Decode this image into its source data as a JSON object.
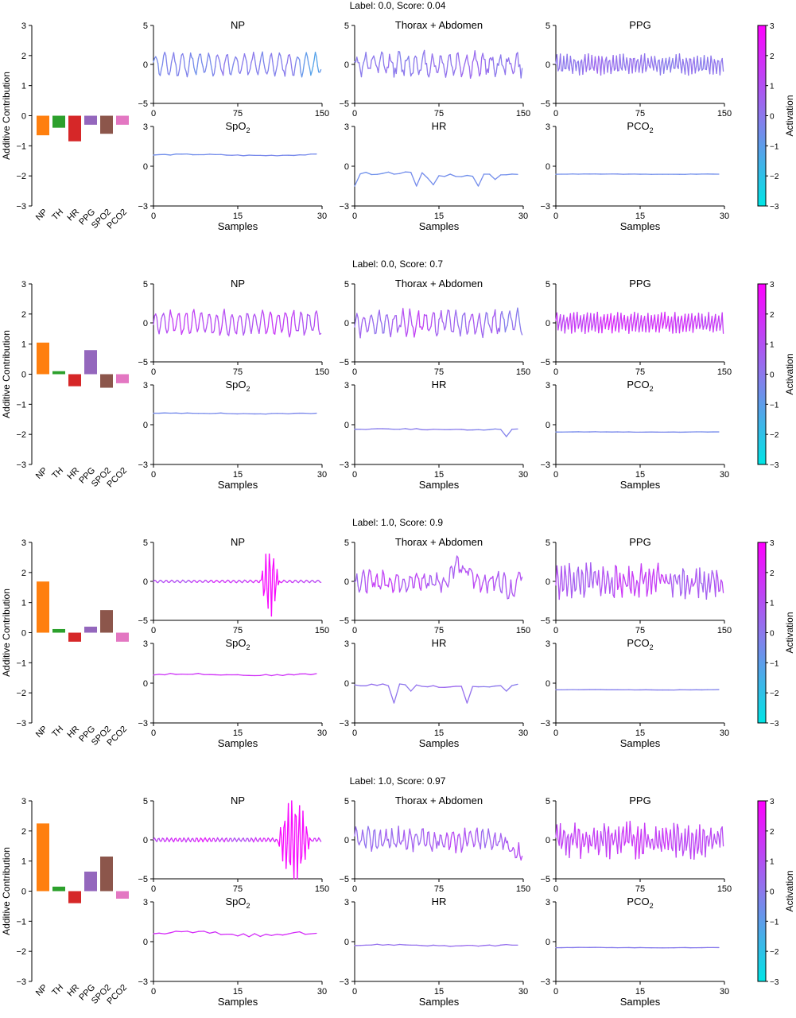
{
  "colorbar": {
    "label": "Activation",
    "ticks": [
      "3",
      "2",
      "1",
      "0",
      "−1",
      "−2",
      "−3"
    ],
    "min": -3,
    "max": 3,
    "colors": [
      "#00e5e5",
      "#8c78ec",
      "#ff00ff"
    ]
  },
  "chart_data": [
    {
      "type": "bar",
      "title": "Label: 0.0, Score: 0.04",
      "ylabel": "Additive Contribution",
      "ylim": [
        -3,
        3
      ],
      "yticks": [
        "3",
        "2",
        "1",
        "0",
        "−1",
        "−2",
        "−3"
      ],
      "categories": [
        "NP",
        "TH",
        "HR",
        "PPG",
        "SPO2",
        "PCO2"
      ],
      "values": [
        -0.65,
        -0.4,
        -0.85,
        -0.3,
        -0.6,
        -0.3
      ],
      "colors": [
        "#ff7f0e",
        "#2ca02c",
        "#d62728",
        "#9467bd",
        "#8c564b",
        "#e377c2"
      ],
      "signals": [
        {
          "type": "line",
          "title": "NP",
          "ylim": [
            -5,
            5
          ],
          "yticks": [
            "5",
            "0",
            "−5"
          ],
          "xlim": [
            0,
            150
          ],
          "xticks": [
            "0",
            "75",
            "150"
          ],
          "samples": 150,
          "amp": 1.3,
          "freq": 19,
          "jitter": 0.3,
          "seed": 11,
          "act_mean": -0.5,
          "act_var": 0.5,
          "seed_act": 3
        },
        {
          "type": "line",
          "title": "Thorax + Abdomen",
          "ylim": [
            -5,
            5
          ],
          "yticks": [
            "5",
            "0",
            "−5"
          ],
          "xlim": [
            0,
            150
          ],
          "xticks": [
            "0",
            "75",
            "150"
          ],
          "samples": 150,
          "amp": 1.2,
          "freq": 20,
          "jitter": 0.6,
          "seed": 12,
          "act_mean": 0.0,
          "act_var": 0.5,
          "seed_act": 4
        },
        {
          "type": "line",
          "title": "PPG",
          "ylim": [
            -5,
            5
          ],
          "yticks": [
            "5",
            "0",
            "−5"
          ],
          "xlim": [
            0,
            150
          ],
          "xticks": [
            "0",
            "75",
            "150"
          ],
          "samples": 150,
          "amp": 1.1,
          "freq": 48,
          "jitter": 0.3,
          "seed": 13,
          "act_mean": 0.0,
          "act_var": 0.3,
          "seed_act": 5
        },
        {
          "type": "line",
          "title": "SpO",
          "sub": "2",
          "ylim": [
            -3,
            3
          ],
          "yticks": [
            "3",
            "0",
            "−3"
          ],
          "xlim": [
            0,
            30
          ],
          "xticks": [
            "0",
            "15",
            "30"
          ],
          "xlabel": "Samples",
          "samples": 30,
          "base": 0.85,
          "noise": 0.04,
          "seed": 14,
          "act_mean": -0.6,
          "act_var": 0.2,
          "seed_act": 6
        },
        {
          "type": "line",
          "title": "HR",
          "ylim": [
            -3,
            3
          ],
          "yticks": [
            "3",
            "0",
            "−3"
          ],
          "xlim": [
            0,
            30
          ],
          "xticks": [
            "0",
            "15",
            "30"
          ],
          "xlabel": "Samples",
          "samples": 30,
          "base": -0.6,
          "noise": 0.1,
          "dips": [
            [
              0,
              -1.5
            ],
            [
              11,
              -1.5
            ],
            [
              13,
              -0.9
            ],
            [
              14,
              -1.4
            ],
            [
              22,
              -1.5
            ],
            [
              25,
              -1.0
            ]
          ],
          "seed": 15,
          "act_mean": -0.6,
          "act_var": 0.3,
          "seed_act": 7
        },
        {
          "type": "line",
          "title": "PCO",
          "sub": "2",
          "ylim": [
            -3,
            3
          ],
          "yticks": [
            "3",
            "0",
            "−3"
          ],
          "xlim": [
            0,
            30
          ],
          "xticks": [
            "0",
            "15",
            "30"
          ],
          "xlabel": "Samples",
          "samples": 30,
          "base": -0.6,
          "noise": 0.01,
          "seed": 16,
          "act_mean": -0.6,
          "act_var": 0.1,
          "seed_act": 8
        }
      ]
    },
    {
      "type": "bar",
      "title": "Label: 0.0, Score: 0.7",
      "ylabel": "Additive Contribution",
      "ylim": [
        -3,
        3
      ],
      "yticks": [
        "3",
        "2",
        "1",
        "0",
        "−1",
        "−2",
        "−3"
      ],
      "categories": [
        "NP",
        "TH",
        "HR",
        "PPG",
        "SPO2",
        "PCO2"
      ],
      "values": [
        1.05,
        0.1,
        -0.4,
        0.8,
        -0.45,
        -0.3
      ],
      "colors": [
        "#ff7f0e",
        "#2ca02c",
        "#d62728",
        "#9467bd",
        "#8c564b",
        "#e377c2"
      ],
      "signals": [
        {
          "type": "line",
          "title": "NP",
          "ylim": [
            -5,
            5
          ],
          "yticks": [
            "5",
            "0",
            "−5"
          ],
          "xlim": [
            0,
            150
          ],
          "xticks": [
            "0",
            "75",
            "150"
          ],
          "samples": 150,
          "amp": 1.4,
          "freq": 22,
          "jitter": 0.3,
          "seed": 21,
          "act_mean": 1.0,
          "act_var": 0.6,
          "seed_act": 9
        },
        {
          "type": "line",
          "title": "Thorax + Abdomen",
          "ylim": [
            -5,
            5
          ],
          "yticks": [
            "5",
            "0",
            "−5"
          ],
          "xlim": [
            0,
            150
          ],
          "xticks": [
            "0",
            "75",
            "150"
          ],
          "samples": 150,
          "amp": 1.3,
          "freq": 22,
          "jitter": 0.5,
          "seed": 22,
          "act_mean": 0.4,
          "act_var": 0.9,
          "seed_act": 10
        },
        {
          "type": "line",
          "title": "PPG",
          "ylim": [
            -5,
            5
          ],
          "yticks": [
            "5",
            "0",
            "−5"
          ],
          "xlim": [
            0,
            150
          ],
          "xticks": [
            "0",
            "75",
            "150"
          ],
          "samples": 150,
          "amp": 1.2,
          "freq": 50,
          "jitter": 0.3,
          "seed": 23,
          "act_mean": 1.4,
          "act_var": 0.6,
          "seed_act": 11
        },
        {
          "type": "line",
          "title": "SpO",
          "sub": "2",
          "ylim": [
            -3,
            3
          ],
          "yticks": [
            "3",
            "0",
            "−3"
          ],
          "xlim": [
            0,
            30
          ],
          "xticks": [
            "0",
            "15",
            "30"
          ],
          "xlabel": "Samples",
          "samples": 30,
          "base": 0.85,
          "noise": 0.03,
          "seed": 24,
          "act_mean": -0.5,
          "act_var": 0.1,
          "seed_act": 12
        },
        {
          "type": "line",
          "title": "HR",
          "ylim": [
            -3,
            3
          ],
          "yticks": [
            "3",
            "0",
            "−3"
          ],
          "xlim": [
            0,
            30
          ],
          "xticks": [
            "0",
            "15",
            "30"
          ],
          "xlabel": "Samples",
          "samples": 30,
          "base": -0.35,
          "noise": 0.04,
          "dips": [
            [
              27,
              -0.9
            ]
          ],
          "seed": 25,
          "act_mean": -0.2,
          "act_var": 0.3,
          "seed_act": 13
        },
        {
          "type": "line",
          "title": "PCO",
          "sub": "2",
          "ylim": [
            -3,
            3
          ],
          "yticks": [
            "3",
            "0",
            "−3"
          ],
          "xlim": [
            0,
            30
          ],
          "xticks": [
            "0",
            "15",
            "30"
          ],
          "xlabel": "Samples",
          "samples": 30,
          "base": -0.55,
          "noise": 0.01,
          "seed": 26,
          "act_mean": -0.5,
          "act_var": 0.1,
          "seed_act": 14
        }
      ]
    },
    {
      "type": "bar",
      "title": "Label: 1.0, Score: 0.9",
      "ylabel": "Additive Contribution",
      "ylim": [
        -3,
        3
      ],
      "yticks": [
        "3",
        "2",
        "1",
        "0",
        "−1",
        "−2",
        "−3"
      ],
      "categories": [
        "NP",
        "TH",
        "HR",
        "PPG",
        "SPO2",
        "PCO2"
      ],
      "values": [
        1.7,
        0.12,
        -0.3,
        0.2,
        0.75,
        -0.3
      ],
      "colors": [
        "#ff7f0e",
        "#2ca02c",
        "#d62728",
        "#9467bd",
        "#8c564b",
        "#e377c2"
      ],
      "signals": [
        {
          "type": "line",
          "title": "NP",
          "ylim": [
            -5,
            5
          ],
          "yticks": [
            "5",
            "0",
            "−5"
          ],
          "xlim": [
            0,
            150
          ],
          "xticks": [
            "0",
            "75",
            "150"
          ],
          "samples": 150,
          "amp": 0.15,
          "freq": 30,
          "jitter": 0.15,
          "burst": [
            95,
            112,
            4.5
          ],
          "seed": 31,
          "act_mean": 1.2,
          "act_var": 0.8,
          "seed_act": 15
        },
        {
          "type": "line",
          "title": "Thorax + Abdomen",
          "ylim": [
            -5,
            5
          ],
          "yticks": [
            "5",
            "0",
            "−5"
          ],
          "xlim": [
            0,
            150
          ],
          "xticks": [
            "0",
            "75",
            "150"
          ],
          "samples": 150,
          "amp": 0.9,
          "freq": 25,
          "jitter": 0.8,
          "trend": [
            [
              90,
              2.5
            ],
            [
              100,
              1.5
            ],
            [
              140,
              -1.5
            ],
            [
              148,
              1.5
            ]
          ],
          "seed": 32,
          "act_mean": 0.8,
          "act_var": 0.9,
          "seed_act": 16
        },
        {
          "type": "line",
          "title": "PPG",
          "ylim": [
            -5,
            5
          ],
          "yticks": [
            "5",
            "0",
            "−5"
          ],
          "xlim": [
            0,
            150
          ],
          "xticks": [
            "0",
            "75",
            "150"
          ],
          "samples": 150,
          "amp": 1.3,
          "freq": 40,
          "jitter": 0.9,
          "seed": 33,
          "act_mean": 0.9,
          "act_var": 0.8,
          "seed_act": 17
        },
        {
          "type": "line",
          "title": "SpO",
          "sub": "2",
          "ylim": [
            -3,
            3
          ],
          "yticks": [
            "3",
            "0",
            "−3"
          ],
          "xlim": [
            0,
            30
          ],
          "xticks": [
            "0",
            "15",
            "30"
          ],
          "xlabel": "Samples",
          "samples": 30,
          "base": 0.65,
          "noise": 0.05,
          "seed": 34,
          "act_mean": 1.6,
          "act_var": 0.2,
          "seed_act": 18
        },
        {
          "type": "line",
          "title": "HR",
          "ylim": [
            -3,
            3
          ],
          "yticks": [
            "3",
            "0",
            "−3"
          ],
          "xlim": [
            0,
            30
          ],
          "xticks": [
            "0",
            "15",
            "30"
          ],
          "xlabel": "Samples",
          "samples": 30,
          "base": -0.2,
          "noise": 0.08,
          "dips": [
            [
              7,
              -1.5
            ],
            [
              10,
              -0.6
            ],
            [
              20,
              -1.5
            ],
            [
              27,
              -0.6
            ]
          ],
          "seed": 35,
          "act_mean": 0.0,
          "act_var": 0.4,
          "seed_act": 19
        },
        {
          "type": "line",
          "title": "PCO",
          "sub": "2",
          "ylim": [
            -3,
            3
          ],
          "yticks": [
            "3",
            "0",
            "−3"
          ],
          "xlim": [
            0,
            30
          ],
          "xticks": [
            "0",
            "15",
            "30"
          ],
          "xlabel": "Samples",
          "samples": 30,
          "base": -0.5,
          "noise": 0.01,
          "seed": 36,
          "act_mean": -0.2,
          "act_var": 0.1,
          "seed_act": 20
        }
      ]
    },
    {
      "type": "bar",
      "title": "Label: 1.0, Score: 0.97",
      "ylabel": "Additive Contribution",
      "ylim": [
        -3,
        3
      ],
      "yticks": [
        "3",
        "2",
        "1",
        "0",
        "−1",
        "−2",
        "−3"
      ],
      "categories": [
        "NP",
        "TH",
        "HR",
        "PPG",
        "SPO2",
        "PCO2"
      ],
      "values": [
        2.25,
        0.15,
        -0.4,
        0.65,
        1.15,
        -0.25
      ],
      "colors": [
        "#ff7f0e",
        "#2ca02c",
        "#d62728",
        "#9467bd",
        "#8c564b",
        "#e377c2"
      ],
      "signals": [
        {
          "type": "line",
          "title": "NP",
          "ylim": [
            -5,
            5
          ],
          "yticks": [
            "5",
            "0",
            "−5"
          ],
          "xlim": [
            0,
            150
          ],
          "xticks": [
            "0",
            "75",
            "150"
          ],
          "samples": 150,
          "amp": 0.25,
          "freq": 40,
          "jitter": 0.15,
          "burst": [
            110,
            140,
            5.5
          ],
          "seed": 41,
          "act_mean": 1.4,
          "act_var": 0.8,
          "seed_act": 21
        },
        {
          "type": "line",
          "title": "Thorax + Abdomen",
          "ylim": [
            -5,
            5
          ],
          "yticks": [
            "5",
            "0",
            "−5"
          ],
          "xlim": [
            0,
            150
          ],
          "xticks": [
            "0",
            "75",
            "150"
          ],
          "samples": 150,
          "amp": 1.0,
          "freq": 28,
          "jitter": 0.8,
          "trend": [
            [
              140,
              -1.5
            ],
            [
              148,
              -2.0
            ]
          ],
          "seed": 42,
          "act_mean": 0.5,
          "act_var": 0.6,
          "seed_act": 22
        },
        {
          "type": "line",
          "title": "PPG",
          "ylim": [
            -5,
            5
          ],
          "yticks": [
            "5",
            "0",
            "−5"
          ],
          "xlim": [
            0,
            150
          ],
          "xticks": [
            "0",
            "75",
            "150"
          ],
          "samples": 150,
          "amp": 1.5,
          "freq": 46,
          "jitter": 0.7,
          "seed": 43,
          "act_mean": 1.1,
          "act_var": 0.6,
          "seed_act": 23
        },
        {
          "type": "line",
          "title": "SpO",
          "sub": "2",
          "ylim": [
            -3,
            3
          ],
          "yticks": [
            "3",
            "0",
            "−3"
          ],
          "xlim": [
            0,
            30
          ],
          "xticks": [
            "0",
            "15",
            "30"
          ],
          "xlabel": "Samples",
          "samples": 30,
          "base": 0.6,
          "noise": 0.12,
          "seed": 44,
          "act_mean": 1.8,
          "act_var": 0.3,
          "seed_act": 24
        },
        {
          "type": "line",
          "title": "HR",
          "ylim": [
            -3,
            3
          ],
          "yticks": [
            "3",
            "0",
            "−3"
          ],
          "xlim": [
            0,
            30
          ],
          "xticks": [
            "0",
            "15",
            "30"
          ],
          "xlabel": "Samples",
          "samples": 30,
          "base": -0.28,
          "noise": 0.05,
          "seed": 45,
          "act_mean": 0.2,
          "act_var": 0.2,
          "seed_act": 25
        },
        {
          "type": "line",
          "title": "PCO",
          "sub": "2",
          "ylim": [
            -3,
            3
          ],
          "yticks": [
            "3",
            "0",
            "−3"
          ],
          "xlim": [
            0,
            30
          ],
          "xticks": [
            "0",
            "15",
            "30"
          ],
          "xlabel": "Samples",
          "samples": 30,
          "base": -0.45,
          "noise": 0.01,
          "seed": 46,
          "act_mean": -0.1,
          "act_var": 0.1,
          "seed_act": 26
        }
      ]
    }
  ]
}
